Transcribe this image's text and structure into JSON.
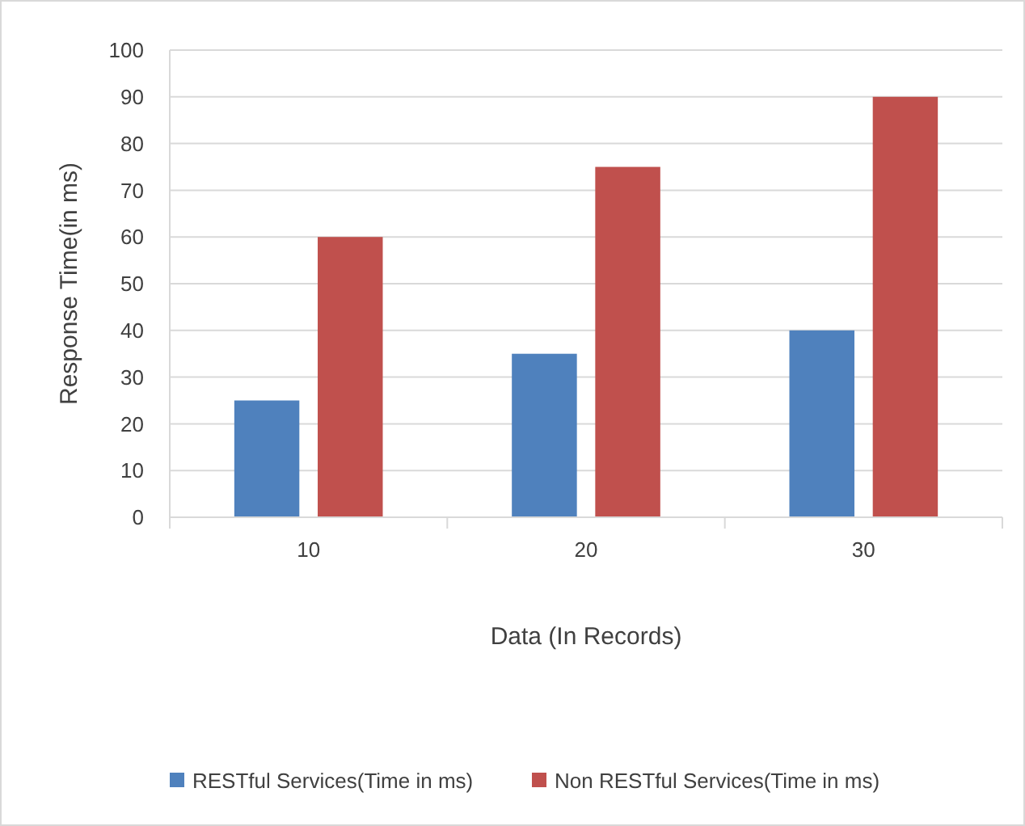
{
  "chart_data": {
    "type": "bar",
    "xlabel": "Data (In Records)",
    "ylabel": "Response Time(in ms)",
    "categories": [
      "10",
      "20",
      "30"
    ],
    "series": [
      {
        "name": "RESTful Services(Time in ms)",
        "color": "#4f81bd",
        "values": [
          25,
          35,
          40
        ]
      },
      {
        "name": "Non RESTful Services(Time in ms)",
        "color": "#c0504d",
        "values": [
          60,
          75,
          90
        ]
      }
    ],
    "ylim": [
      0,
      100
    ],
    "yticks": [
      0,
      10,
      20,
      30,
      40,
      50,
      60,
      70,
      80,
      90,
      100
    ],
    "grid": "y",
    "legend": "bottom"
  }
}
